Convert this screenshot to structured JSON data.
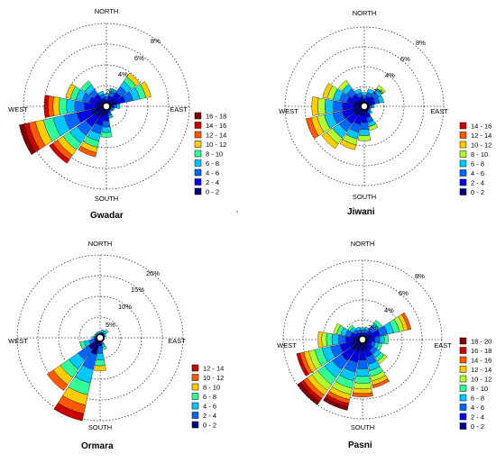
{
  "directions": {
    "north": "NORTH",
    "south": "SOUTH",
    "east": "EAST",
    "west": "WEST"
  },
  "colors": {
    "0-2": "#00007f",
    "2-4": "#0000e6",
    "4-6": "#0064ff",
    "6-8": "#00c8ff",
    "8-10": "#33ff99",
    "10-12": "#b3ff33",
    "12-14": "#ffcc00",
    "14-16": "#ff5a00",
    "16-18": "#c80000",
    "18-20": "#7f0000"
  },
  "chart_data": [
    {
      "type": "windrose",
      "title": "Gwadar",
      "rings": [
        "2%",
        "4%",
        "6%",
        "8%"
      ],
      "legend": [
        "16 - 18",
        "14 - 16",
        "12 - 14",
        "10 - 12",
        "8 - 10",
        "6 - 8",
        "4 - 6",
        "2 - 4",
        "0 - 2"
      ],
      "legend_colors": [
        "#7f0000",
        "#c80000",
        "#ff5a00",
        "#ffcc00",
        "#33ff99",
        "#00c8ff",
        "#0064ff",
        "#0000e6",
        "#00007f"
      ],
      "petals": [
        {
          "dir": 0,
          "total": 1.2
        },
        {
          "dir": 22.5,
          "total": 1.8
        },
        {
          "dir": 45,
          "total": 3.9
        },
        {
          "dir": 67.5,
          "total": 4.4
        },
        {
          "dir": 90,
          "total": 1.3
        },
        {
          "dir": 112.5,
          "total": 0.8
        },
        {
          "dir": 135,
          "total": 0.7
        },
        {
          "dir": 157.5,
          "total": 1.2
        },
        {
          "dir": 180,
          "total": 3.0
        },
        {
          "dir": 202.5,
          "total": 5.0
        },
        {
          "dir": 225,
          "total": 6.7
        },
        {
          "dir": 247.5,
          "total": 8.6
        },
        {
          "dir": 270,
          "total": 6.0
        },
        {
          "dir": 292.5,
          "total": 4.0
        },
        {
          "dir": 315,
          "total": 3.0
        },
        {
          "dir": 337.5,
          "total": 1.5
        }
      ]
    },
    {
      "type": "windrose",
      "title": "Jiwani",
      "rings": [
        "2%",
        "4%",
        "6%",
        "8%"
      ],
      "legend": [
        "14 - 16",
        "12 - 14",
        "10 - 12",
        "8 - 10",
        "6 - 8",
        "4 - 6",
        "2 - 4",
        "0 - 2"
      ],
      "legend_colors": [
        "#c80000",
        "#ff5a00",
        "#ffcc00",
        "#b3ff33",
        "#00c8ff",
        "#0064ff",
        "#0000e6",
        "#00007f"
      ],
      "petals": [
        {
          "dir": 0,
          "total": 1.4
        },
        {
          "dir": 22.5,
          "total": 1.8
        },
        {
          "dir": 45,
          "total": 2.6
        },
        {
          "dir": 67.5,
          "total": 2.0
        },
        {
          "dir": 90,
          "total": 1.0
        },
        {
          "dir": 112.5,
          "total": 0.7
        },
        {
          "dir": 135,
          "total": 1.0
        },
        {
          "dir": 157.5,
          "total": 2.5
        },
        {
          "dir": 180,
          "total": 3.5
        },
        {
          "dir": 202.5,
          "total": 4.5
        },
        {
          "dir": 225,
          "total": 5.2
        },
        {
          "dir": 247.5,
          "total": 6.0
        },
        {
          "dir": 270,
          "total": 5.3
        },
        {
          "dir": 292.5,
          "total": 4.3
        },
        {
          "dir": 315,
          "total": 3.2
        },
        {
          "dir": 337.5,
          "total": 1.8
        }
      ]
    },
    {
      "type": "windrose",
      "title": "Ormara",
      "rings": [
        "5%",
        "10%",
        "15%",
        "20%"
      ],
      "legend": [
        "12 - 14",
        "10 - 12",
        "8 - 10",
        "6 - 8",
        "4 - 6",
        "2 - 4",
        "0 - 2"
      ],
      "legend_colors": [
        "#c80000",
        "#ff5a00",
        "#ffcc00",
        "#33ff99",
        "#00c8ff",
        "#0064ff",
        "#00007f"
      ],
      "petals": [
        {
          "dir": 0,
          "total": 1.5
        },
        {
          "dir": 22.5,
          "total": 2.0
        },
        {
          "dir": 45,
          "total": 2.5
        },
        {
          "dir": 67.5,
          "total": 1.5
        },
        {
          "dir": 90,
          "total": 1.0
        },
        {
          "dir": 112.5,
          "total": 0.8
        },
        {
          "dir": 135,
          "total": 1.0
        },
        {
          "dir": 157.5,
          "total": 3.0
        },
        {
          "dir": 180,
          "total": 8.0
        },
        {
          "dir": 202.5,
          "total": 20.5
        },
        {
          "dir": 225,
          "total": 15.5
        },
        {
          "dir": 247.5,
          "total": 5.0
        },
        {
          "dir": 270,
          "total": 2.0
        },
        {
          "dir": 292.5,
          "total": 1.5
        },
        {
          "dir": 315,
          "total": 1.5
        },
        {
          "dir": 337.5,
          "total": 1.5
        }
      ]
    },
    {
      "type": "windrose",
      "title": "Pasni",
      "rings": [
        "2%",
        "4%",
        "6%",
        "8%"
      ],
      "legend": [
        "18 - 20",
        "16 - 18",
        "14 - 16",
        "12 - 14",
        "10 - 12",
        "8 - 10",
        "6 - 8",
        "4 - 6",
        "2 - 4",
        "0 - 2"
      ],
      "legend_colors": [
        "#7f0000",
        "#c80000",
        "#ff5a00",
        "#ffcc00",
        "#b3ff33",
        "#33ff99",
        "#00c8ff",
        "#0064ff",
        "#0000e6",
        "#00007f"
      ],
      "petals": [
        {
          "dir": 0,
          "total": 1.2
        },
        {
          "dir": 22.5,
          "total": 1.3
        },
        {
          "dir": 45,
          "total": 2.4
        },
        {
          "dir": 67.5,
          "total": 5.0
        },
        {
          "dir": 90,
          "total": 2.6
        },
        {
          "dir": 112.5,
          "total": 2.0
        },
        {
          "dir": 135,
          "total": 3.0
        },
        {
          "dir": 157.5,
          "total": 5.0
        },
        {
          "dir": 180,
          "total": 5.8
        },
        {
          "dir": 202.5,
          "total": 7.3
        },
        {
          "dir": 225,
          "total": 8.0
        },
        {
          "dir": 247.5,
          "total": 6.8
        },
        {
          "dir": 270,
          "total": 4.5
        },
        {
          "dir": 292.5,
          "total": 3.0
        },
        {
          "dir": 315,
          "total": 1.8
        },
        {
          "dir": 337.5,
          "total": 1.3
        }
      ]
    }
  ]
}
